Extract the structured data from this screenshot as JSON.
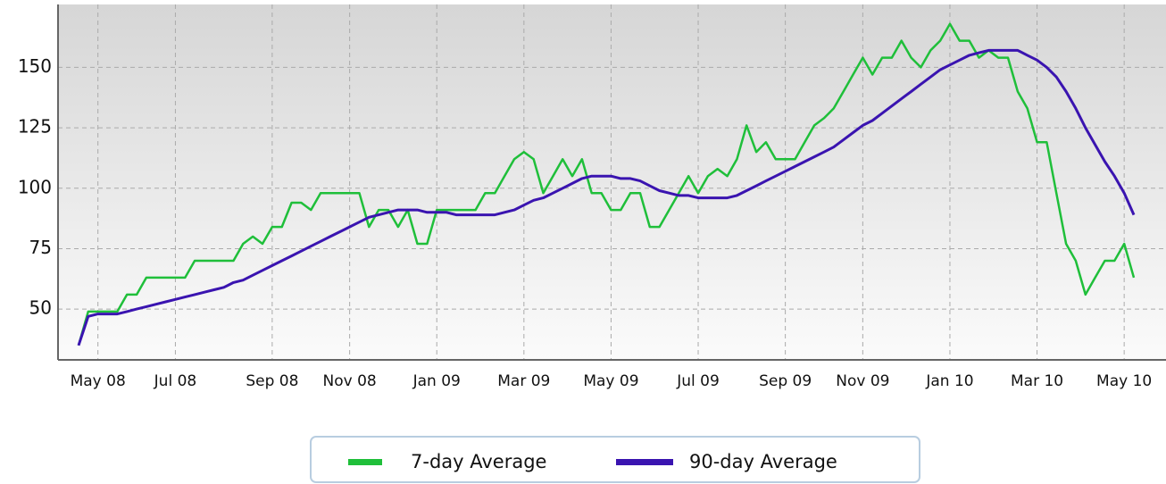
{
  "chart_data": {
    "type": "line",
    "categories": [
      null,
      null,
      "May 08",
      null,
      null,
      null,
      null,
      null,
      null,
      null,
      "Jul 08",
      null,
      null,
      null,
      null,
      null,
      null,
      null,
      null,
      null,
      "Sep 08",
      null,
      null,
      null,
      null,
      null,
      null,
      null,
      "Nov 08",
      null,
      null,
      null,
      null,
      null,
      null,
      null,
      null,
      "Jan 09",
      null,
      null,
      null,
      null,
      null,
      null,
      null,
      null,
      "Mar 09",
      null,
      null,
      null,
      null,
      null,
      null,
      null,
      null,
      "May 09",
      null,
      null,
      null,
      null,
      null,
      null,
      null,
      null,
      "Jul 09",
      null,
      null,
      null,
      null,
      null,
      null,
      null,
      null,
      "Sep 09",
      null,
      null,
      null,
      null,
      null,
      null,
      null,
      "Nov 09",
      null,
      null,
      null,
      null,
      null,
      null,
      null,
      null,
      "Jan 10",
      null,
      null,
      null,
      null,
      null,
      null,
      null,
      null,
      "Mar 10",
      null,
      null,
      null,
      null,
      null,
      null,
      null,
      null,
      "May 10",
      null
    ],
    "series": [
      {
        "name": "7-day Average",
        "color": "#1fbf3a",
        "values": [
          35,
          49,
          49,
          49,
          49,
          56,
          56,
          63,
          63,
          63,
          63,
          63,
          70,
          70,
          70,
          70,
          70,
          77,
          80,
          77,
          84,
          84,
          94,
          94,
          91,
          98,
          98,
          98,
          98,
          98,
          84,
          91,
          91,
          84,
          91,
          77,
          77,
          91,
          91,
          91,
          91,
          91,
          98,
          98,
          105,
          112,
          115,
          112,
          98,
          105,
          112,
          105,
          112,
          98,
          98,
          91,
          91,
          98,
          98,
          84,
          84,
          91,
          98,
          105,
          98,
          105,
          108,
          105,
          112,
          126,
          115,
          119,
          112,
          112,
          112,
          119,
          126,
          129,
          133,
          140,
          147,
          154,
          147,
          154,
          154,
          161,
          154,
          150,
          157,
          161,
          168,
          161,
          161,
          154,
          157,
          154,
          154,
          140,
          133,
          119,
          119,
          98,
          77,
          70,
          56,
          63,
          70,
          70,
          77,
          63
        ]
      },
      {
        "name": "90-day Average",
        "color": "#3a14b0",
        "values": [
          35,
          47,
          48,
          48,
          48,
          49,
          50,
          51,
          52,
          53,
          54,
          55,
          56,
          57,
          58,
          59,
          61,
          62,
          64,
          66,
          68,
          70,
          72,
          74,
          76,
          78,
          80,
          82,
          84,
          86,
          88,
          89,
          90,
          91,
          91,
          91,
          90,
          90,
          90,
          89,
          89,
          89,
          89,
          89,
          90,
          91,
          93,
          95,
          96,
          98,
          100,
          102,
          104,
          105,
          105,
          105,
          104,
          104,
          103,
          101,
          99,
          98,
          97,
          97,
          96,
          96,
          96,
          96,
          97,
          99,
          101,
          103,
          105,
          107,
          109,
          111,
          113,
          115,
          117,
          120,
          123,
          126,
          128,
          131,
          134,
          137,
          140,
          143,
          146,
          149,
          151,
          153,
          155,
          156,
          157,
          157,
          157,
          157,
          155,
          153,
          150,
          146,
          140,
          133,
          125,
          118,
          111,
          105,
          98,
          89
        ]
      }
    ],
    "ylim": [
      29,
      176
    ],
    "yticks": [
      50,
      75,
      100,
      125,
      150
    ],
    "grid": true
  }
}
